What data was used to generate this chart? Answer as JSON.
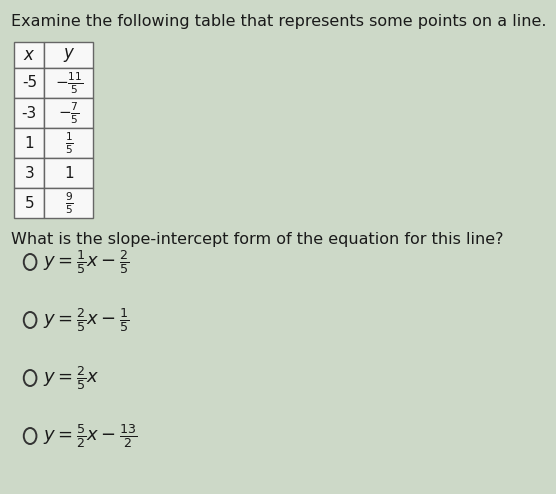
{
  "title": "Examine the following table that represents some points on a line.",
  "table_x_vals": [
    "-5",
    "-3",
    "1",
    "3",
    "5"
  ],
  "table_y_vals": [
    "-\\frac{11}{5}",
    "-\\frac{7}{5}",
    "\\frac{1}{5}",
    "1",
    "\\frac{9}{5}"
  ],
  "question": "What is the slope-intercept form of the equation for this line?",
  "options_latex": [
    "$y = \\frac{1}{5}x - \\frac{2}{5}$",
    "$y = \\frac{2}{5}x - \\frac{1}{5}$",
    "$y = \\frac{2}{5}x$",
    "$y = \\frac{5}{2}x - \\frac{13}{2}$"
  ],
  "bg_color": "#cdd9c8",
  "text_color": "#1a1a1a",
  "title_fontsize": 11.5,
  "question_fontsize": 11.5,
  "table_fontsize": 11,
  "option_fontsize": 13
}
